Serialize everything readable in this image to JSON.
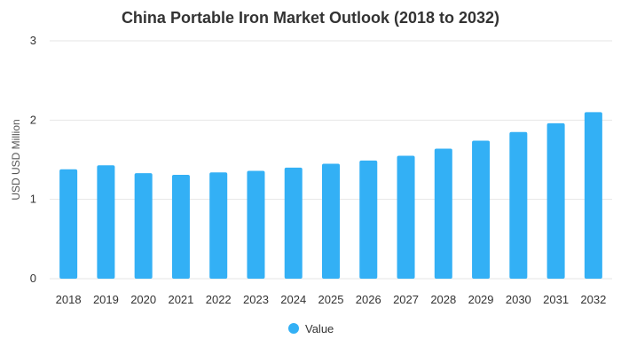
{
  "chart_data": {
    "type": "bar",
    "title": "China Portable Iron Market Outlook (2018 to 2032)",
    "xlabel": "",
    "ylabel": "USD USD Million",
    "ylim": [
      0,
      3
    ],
    "yticks": [
      0,
      1,
      2,
      3
    ],
    "grid": true,
    "legend_position": "bottom",
    "categories": [
      "2018",
      "2019",
      "2020",
      "2021",
      "2022",
      "2023",
      "2024",
      "2025",
      "2026",
      "2027",
      "2028",
      "2029",
      "2030",
      "2031",
      "2032"
    ],
    "series": [
      {
        "name": "Value",
        "color": "#33b0f5",
        "values": [
          1.38,
          1.43,
          1.33,
          1.31,
          1.34,
          1.36,
          1.4,
          1.45,
          1.49,
          1.55,
          1.64,
          1.74,
          1.85,
          1.96,
          2.1
        ]
      }
    ]
  }
}
